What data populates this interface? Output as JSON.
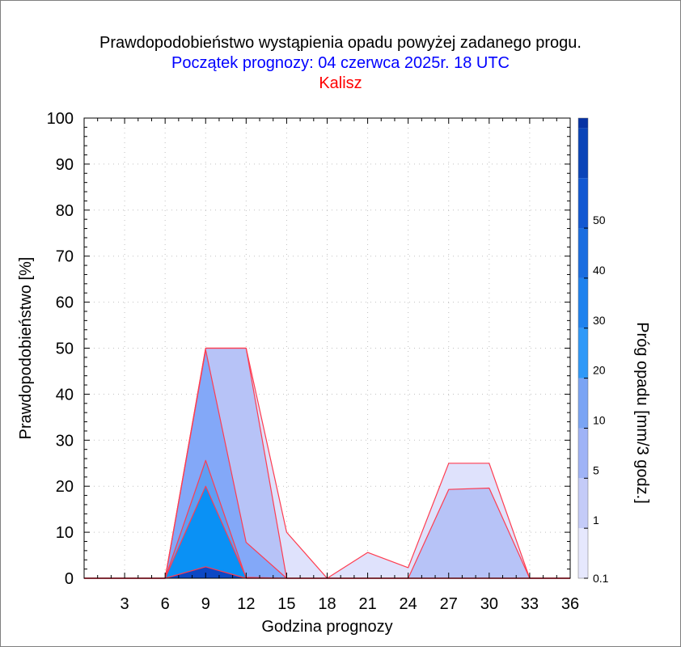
{
  "header": {
    "title": "Prawdopodobieństwo wystąpienia opadu powyżej zadanego progu.",
    "subtitle": "Początek prognozy: 04 czerwca 2025r. 18 UTC",
    "location": "Kalisz"
  },
  "colors": {
    "title": "#000000",
    "subtitle": "#0000ff",
    "location": "#ff0000",
    "outline": "#ff3c50"
  },
  "chart_data": {
    "type": "area",
    "xlabel": "Godzina prognozy",
    "ylabel": "Prawdopodobieństwo [%]",
    "x": [
      0,
      3,
      6,
      9,
      12,
      15,
      18,
      21,
      24,
      27,
      30,
      33,
      36
    ],
    "xticks": [
      "3",
      "6",
      "9",
      "12",
      "15",
      "18",
      "21",
      "24",
      "27",
      "30",
      "33",
      "36"
    ],
    "xlim": [
      0,
      36
    ],
    "ylim": [
      0,
      100
    ],
    "yticks": [
      "0",
      "10",
      "20",
      "30",
      "40",
      "50",
      "60",
      "70",
      "80",
      "90",
      "100"
    ],
    "grid": true,
    "series": [
      {
        "threshold": "0.1",
        "color": "#dfe2fc",
        "values": [
          0,
          0,
          0,
          50,
          50,
          10,
          0,
          5.6,
          2.3,
          25,
          25,
          0,
          0
        ]
      },
      {
        "threshold": "1",
        "color": "#b7c3f7",
        "values": [
          0,
          0,
          0,
          50,
          50,
          0,
          0,
          0,
          0,
          19.3,
          19.6,
          0,
          0
        ]
      },
      {
        "threshold": "10",
        "color": "#83a8f8",
        "values": [
          0,
          0,
          0,
          49.6,
          7.8,
          0,
          0,
          0,
          0,
          0,
          0,
          0,
          0
        ]
      },
      {
        "threshold": "20",
        "color": "#5f9ef3",
        "values": [
          0,
          0,
          0,
          25.6,
          0,
          0,
          0,
          0,
          0,
          0,
          0,
          0,
          0
        ]
      },
      {
        "threshold": "30",
        "color": "#0a91f5",
        "values": [
          0,
          0,
          0,
          20,
          0.2,
          0,
          0,
          0,
          0,
          0,
          0,
          0,
          0
        ]
      },
      {
        "threshold": "50",
        "color": "#0c48c4",
        "values": [
          0,
          0,
          0,
          2.5,
          0,
          0,
          0,
          0,
          0,
          0,
          0,
          0,
          0
        ]
      }
    ],
    "colorbar": {
      "label": "Próg opadu [mm/3 godz.]",
      "ticks": [
        "0.1",
        "1",
        "5",
        "10",
        "20",
        "30",
        "40",
        "50"
      ],
      "colors": [
        "#e6e8fd",
        "#c4cbf8",
        "#9fb3f6",
        "#7aa4f4",
        "#2f99f8",
        "#1f82ee",
        "#1a6de0",
        "#1258d2",
        "#0a44b8",
        "#0632a4"
      ]
    }
  }
}
